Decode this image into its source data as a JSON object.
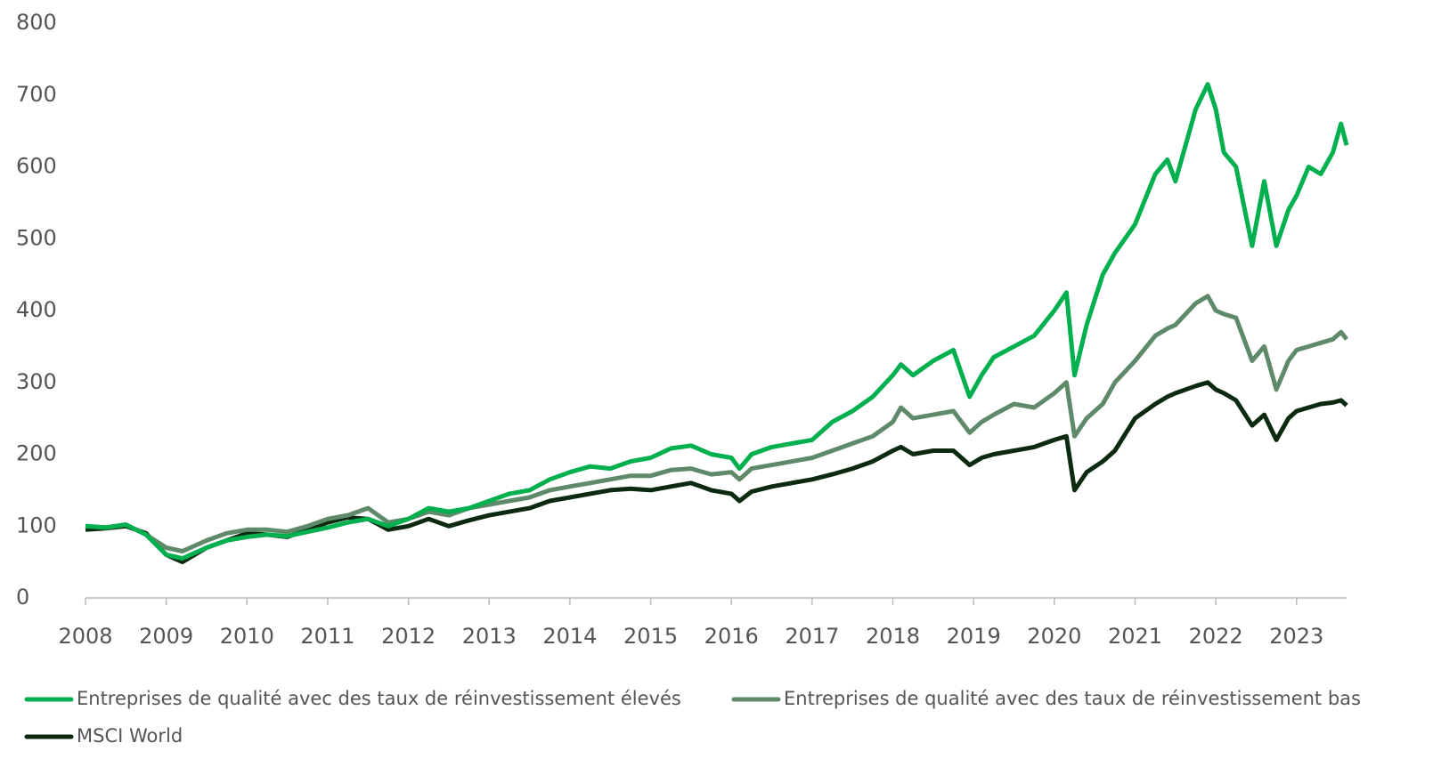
{
  "chart_data": {
    "type": "line",
    "x": [
      2008,
      2008.25,
      2008.5,
      2008.75,
      2009,
      2009.2,
      2009.5,
      2009.75,
      2010,
      2010.25,
      2010.5,
      2010.75,
      2011,
      2011.25,
      2011.5,
      2011.75,
      2012,
      2012.25,
      2012.5,
      2012.75,
      2013,
      2013.25,
      2013.5,
      2013.75,
      2014,
      2014.25,
      2014.5,
      2014.75,
      2015,
      2015.25,
      2015.5,
      2015.75,
      2016,
      2016.1,
      2016.25,
      2016.5,
      2016.75,
      2017,
      2017.25,
      2017.5,
      2017.75,
      2018,
      2018.1,
      2018.25,
      2018.5,
      2018.75,
      2018.95,
      2019.1,
      2019.25,
      2019.5,
      2019.75,
      2020,
      2020.15,
      2020.25,
      2020.4,
      2020.6,
      2020.75,
      2021,
      2021.25,
      2021.4,
      2021.5,
      2021.75,
      2021.9,
      2022,
      2022.1,
      2022.25,
      2022.45,
      2022.6,
      2022.75,
      2022.9,
      2023,
      2023.15,
      2023.3,
      2023.45,
      2023.55,
      2023.62
    ],
    "series": [
      {
        "name": "Entreprises de qualité avec des taux de réinvestissement élevés",
        "color": "#00b04f",
        "values": [
          100,
          98,
          102,
          88,
          60,
          55,
          70,
          80,
          85,
          88,
          86,
          92,
          98,
          105,
          110,
          100,
          110,
          125,
          120,
          125,
          135,
          145,
          150,
          165,
          175,
          183,
          180,
          190,
          195,
          208,
          212,
          200,
          195,
          180,
          200,
          210,
          215,
          220,
          245,
          260,
          280,
          310,
          325,
          310,
          330,
          345,
          280,
          310,
          335,
          350,
          365,
          400,
          425,
          310,
          380,
          450,
          480,
          520,
          590,
          610,
          580,
          680,
          715,
          680,
          620,
          600,
          490,
          580,
          490,
          540,
          560,
          600,
          590,
          620,
          660,
          630
        ]
      },
      {
        "name": "Entreprises de qualité avec des taux de réinvestissement bas",
        "color": "#5e8a69",
        "values": [
          100,
          98,
          102,
          88,
          70,
          65,
          80,
          90,
          95,
          95,
          92,
          100,
          110,
          115,
          125,
          105,
          110,
          120,
          115,
          125,
          130,
          135,
          140,
          150,
          155,
          160,
          165,
          170,
          170,
          178,
          180,
          172,
          175,
          165,
          180,
          185,
          190,
          195,
          205,
          215,
          225,
          245,
          265,
          250,
          255,
          260,
          230,
          245,
          255,
          270,
          265,
          285,
          300,
          225,
          250,
          270,
          300,
          330,
          365,
          375,
          380,
          410,
          420,
          400,
          395,
          390,
          330,
          350,
          290,
          330,
          345,
          350,
          355,
          360,
          370,
          360
        ]
      },
      {
        "name": "MSCI World",
        "color": "#0b2a10",
        "values": [
          95,
          97,
          100,
          90,
          60,
          50,
          70,
          80,
          90,
          88,
          85,
          95,
          105,
          112,
          110,
          95,
          100,
          110,
          100,
          108,
          115,
          120,
          125,
          135,
          140,
          145,
          150,
          152,
          150,
          155,
          160,
          150,
          145,
          135,
          148,
          155,
          160,
          165,
          172,
          180,
          190,
          205,
          210,
          200,
          205,
          205,
          185,
          195,
          200,
          205,
          210,
          220,
          225,
          150,
          175,
          190,
          205,
          250,
          270,
          280,
          285,
          295,
          300,
          290,
          285,
          275,
          240,
          255,
          220,
          250,
          260,
          265,
          270,
          272,
          275,
          268
        ]
      }
    ],
    "xlim": [
      2008,
      2023.62
    ],
    "xticks": [
      2008,
      2009,
      2010,
      2011,
      2012,
      2013,
      2014,
      2015,
      2016,
      2017,
      2018,
      2019,
      2020,
      2021,
      2022,
      2023
    ],
    "ylim": [
      0,
      800
    ],
    "yticks": [
      0,
      100,
      200,
      300,
      400,
      500,
      600,
      700,
      800
    ],
    "grid": false,
    "legend": "bottom"
  }
}
